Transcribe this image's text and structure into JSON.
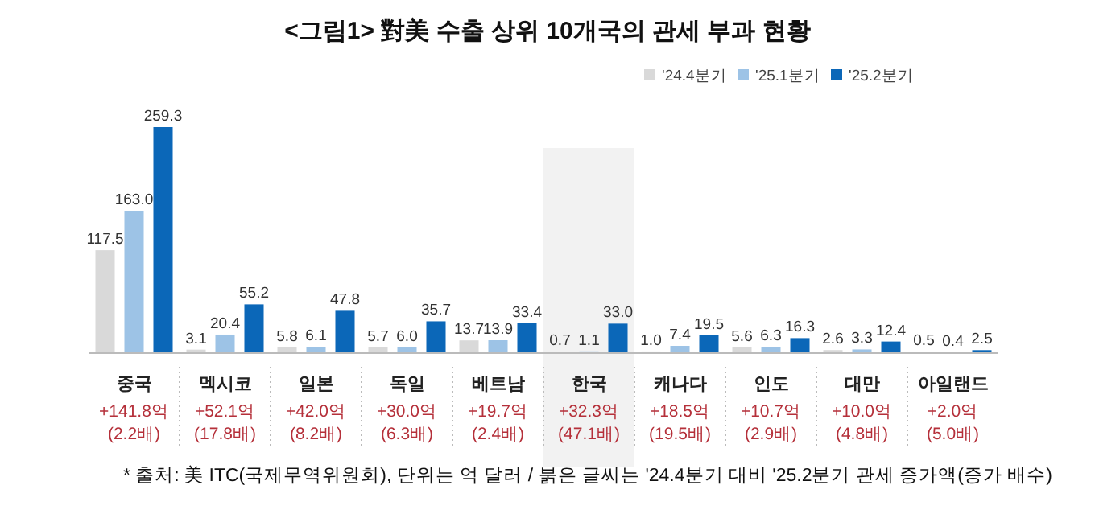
{
  "chart_data": {
    "type": "bar",
    "title": "<그림1> 對美 수출 상위 10개국의 관세 부과 현황",
    "categories": [
      "중국",
      "멕시코",
      "일본",
      "독일",
      "베트남",
      "한국",
      "캐나다",
      "인도",
      "대만",
      "아일랜드"
    ],
    "series": [
      {
        "name": "'24.4분기",
        "color": "#d9d9d9",
        "values": [
          117.5,
          3.1,
          5.8,
          5.7,
          13.7,
          0.7,
          1.0,
          5.6,
          2.6,
          0.5
        ],
        "value_labels": [
          "117.5",
          "3.1",
          "5.8",
          "5.7",
          "13.7",
          "0.7",
          "1.0",
          "5.6",
          "2.6",
          "0.5"
        ]
      },
      {
        "name": "'25.1분기",
        "color": "#9dc3e6",
        "values": [
          163.0,
          20.4,
          6.1,
          6.0,
          13.9,
          1.1,
          7.4,
          6.3,
          3.3,
          0.4
        ],
        "value_labels": [
          "163.0",
          "20.4",
          "6.1",
          "6.0",
          "13.9",
          "1.1",
          "7.4",
          "6.3",
          "3.3",
          "0.4"
        ]
      },
      {
        "name": "'25.2분기",
        "color": "#0b67b8",
        "values": [
          259.3,
          55.2,
          47.8,
          35.7,
          33.4,
          33.0,
          19.5,
          16.3,
          12.4,
          2.5
        ],
        "value_labels": [
          "259.3",
          "55.2",
          "47.8",
          "35.7",
          "33.4",
          "33.0",
          "19.5",
          "16.3",
          "12.4",
          "2.5"
        ]
      }
    ],
    "legend": "top right",
    "bands": [
      {
        "axis": "x",
        "from": "한국",
        "to": "한국",
        "color": "#f2f2f2"
      }
    ],
    "annotations": [
      "+141.8억\n(2.2배)",
      "+52.1억\n(17.8배)",
      "+42.0억\n(8.2배)",
      "+30.0억\n(6.3배)",
      "+19.7억\n(2.4배)",
      "+32.3억\n(47.1배)",
      "+18.5억\n(19.5배)",
      "+10.7억\n(2.9배)",
      "+10.0억\n(4.8배)",
      "+2.0억\n(5.0배)",
      "* 출처: 美 ITC(국제무역위원회), 단위는 억 달러 / 붉은 글씨는 '24.4분기 대비 '25.2분기 관세 증가액(증가 배수)"
    ]
  }
}
